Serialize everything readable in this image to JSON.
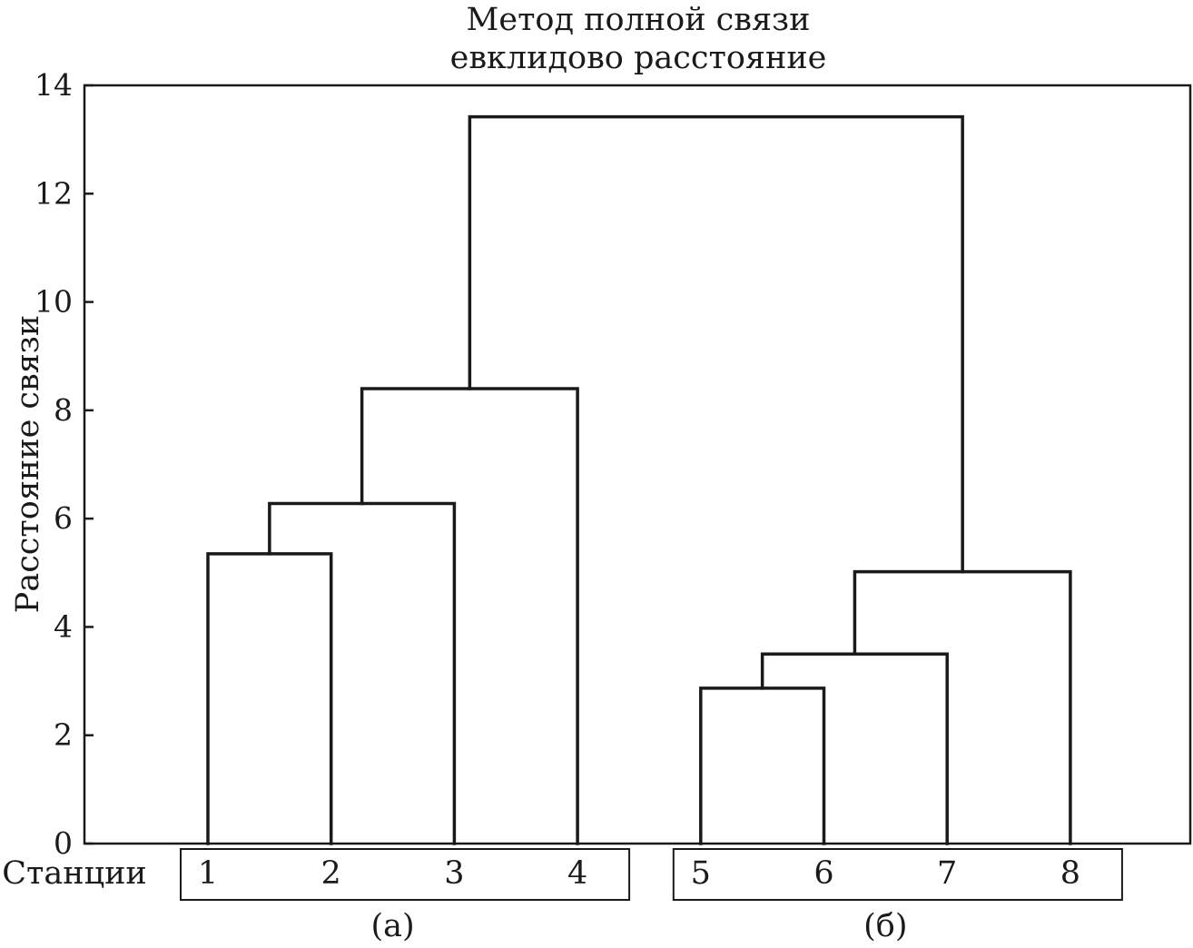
{
  "chart_data": {
    "type": "dendrogram",
    "title_lines": [
      "Метод полной связи",
      "евклидово расстояние"
    ],
    "ylabel": "Расстояние связи",
    "ylim": [
      0,
      14
    ],
    "yticks": [
      0,
      2,
      4,
      6,
      8,
      10,
      12,
      14
    ],
    "row_label": "Станции",
    "leaves": [
      "1",
      "2",
      "3",
      "4",
      "5",
      "6",
      "7",
      "8"
    ],
    "merges": [
      {
        "id": "A1",
        "children": [
          "1",
          "2"
        ],
        "height": 5.35
      },
      {
        "id": "A2",
        "children": [
          "A1",
          "3"
        ],
        "height": 6.28
      },
      {
        "id": "A3",
        "children": [
          "A2",
          "4"
        ],
        "height": 8.4
      },
      {
        "id": "B1",
        "children": [
          "5",
          "6"
        ],
        "height": 2.87
      },
      {
        "id": "B2",
        "children": [
          "B1",
          "7"
        ],
        "height": 3.5
      },
      {
        "id": "B3",
        "children": [
          "B2",
          "8"
        ],
        "height": 5.02
      },
      {
        "id": "R",
        "children": [
          "A3",
          "B3"
        ],
        "height": 13.42
      }
    ],
    "groups": [
      {
        "label": "(а)",
        "leaves": [
          "1",
          "2",
          "3",
          "4"
        ]
      },
      {
        "label": "(б)",
        "leaves": [
          "5",
          "6",
          "7",
          "8"
        ]
      }
    ]
  }
}
